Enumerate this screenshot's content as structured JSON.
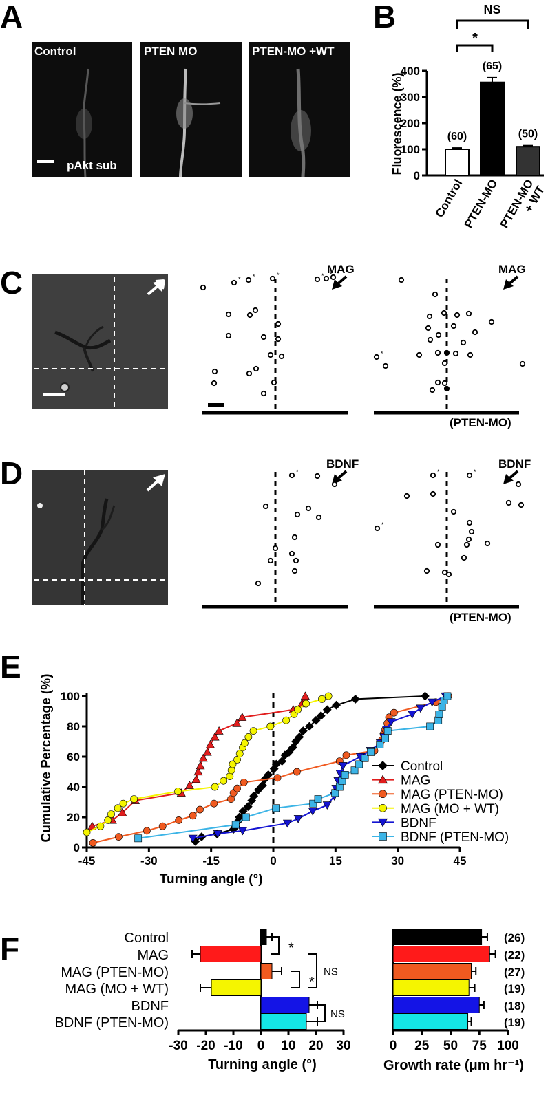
{
  "panels": {
    "A": {
      "letter": "A",
      "images": [
        {
          "label": "Control",
          "caption": "pAkt sub"
        },
        {
          "label": "PTEN MO"
        },
        {
          "label": "PTEN-MO +WT"
        }
      ]
    },
    "B": {
      "letter": "B",
      "sig_outer": "NS",
      "sig_inner": "*"
    },
    "C": {
      "letter": "C",
      "arrow_label_left": "MAG",
      "arrow_label_right": "MAG",
      "sublabel": "(PTEN-MO)",
      "dots_left": [
        [
          295,
          418
        ],
        [
          340,
          411
        ],
        [
          361,
          407
        ],
        [
          396,
          405
        ],
        [
          461,
          406
        ],
        [
          474,
          405
        ],
        [
          484,
          403
        ],
        [
          332,
          457
        ],
        [
          363,
          458
        ],
        [
          371,
          451
        ],
        [
          404,
          471
        ],
        [
          404,
          493
        ],
        [
          383,
          490
        ],
        [
          332,
          488
        ],
        [
          393,
          516
        ],
        [
          409,
          518
        ],
        [
          362,
          543
        ],
        [
          372,
          536
        ],
        [
          312,
          540
        ],
        [
          311,
          557
        ],
        [
          398,
          556
        ],
        [
          383,
          572
        ]
      ],
      "stars_left": [
        [
          343,
          409
        ],
        [
          364,
          405
        ],
        [
          399,
          403
        ],
        [
          464,
          404
        ],
        [
          476,
          402
        ],
        [
          487,
          401
        ]
      ],
      "dots_right": [
        [
          583,
          407
        ],
        [
          632,
          428
        ],
        [
          624,
          460
        ],
        [
          645,
          455
        ],
        [
          664,
          458
        ],
        [
          681,
          456
        ],
        [
          714,
          468
        ],
        [
          622,
          477
        ],
        [
          637,
          487
        ],
        [
          659,
          474
        ],
        [
          690,
          483
        ],
        [
          625,
          494
        ],
        [
          673,
          498
        ],
        [
          609,
          516
        ],
        [
          636,
          513
        ],
        [
          662,
          514
        ],
        [
          683,
          516
        ],
        [
          646,
          528
        ],
        [
          547,
          519
        ],
        [
          560,
          532
        ],
        [
          759,
          529
        ],
        [
          636,
          556
        ],
        [
          646,
          557
        ],
        [
          628,
          567
        ]
      ],
      "filled_right": [
        [
          649,
          513
        ],
        [
          649,
          565
        ]
      ],
      "stars_right": [
        [
          550,
          517
        ]
      ]
    },
    "D": {
      "letter": "D",
      "arrow_label_left": "BDNF",
      "arrow_label_right": "BDNF",
      "sublabel": "(PTEN-MO)",
      "dots_left": [
        [
          424,
          691
        ],
        [
          461,
          692
        ],
        [
          486,
          704
        ],
        [
          386,
          736
        ],
        [
          432,
          748
        ],
        [
          448,
          739
        ],
        [
          463,
          752
        ],
        [
          428,
          781
        ],
        [
          400,
          797
        ],
        [
          393,
          815
        ],
        [
          424,
          805
        ],
        [
          430,
          815
        ],
        [
          428,
          830
        ],
        [
          375,
          848
        ]
      ],
      "stars_left": [
        [
          427,
          689
        ]
      ],
      "dots_right": [
        [
          629,
          691
        ],
        [
          682,
          691
        ],
        [
          591,
          721
        ],
        [
          629,
          718
        ],
        [
          753,
          704
        ],
        [
          739,
          731
        ],
        [
          757,
          734
        ],
        [
          659,
          744
        ],
        [
          682,
          760
        ],
        [
          685,
          773
        ],
        [
          681,
          784
        ],
        [
          678,
          792
        ],
        [
          708,
          790
        ],
        [
          636,
          792
        ],
        [
          674,
          811
        ],
        [
          620,
          830
        ],
        [
          646,
          832
        ],
        [
          652,
          835
        ],
        [
          548,
          768
        ]
      ],
      "stars_right": [
        [
          632,
          689
        ],
        [
          685,
          689
        ],
        [
          551,
          766
        ]
      ]
    },
    "E": {
      "letter": "E"
    },
    "F": {
      "letter": "F"
    }
  },
  "chart_data": [
    {
      "type": "bar",
      "panel": "B",
      "categories": [
        "Control",
        "PTEN-MO",
        "PTEN-MO\n+ WT"
      ],
      "values": [
        100,
        356,
        110
      ],
      "errors": [
        5,
        18,
        4
      ],
      "n_labels": [
        "(60)",
        "(65)",
        "(50)"
      ],
      "colors": [
        "#ffffff",
        "#000000",
        "#333333"
      ],
      "ylabel": "Fluorescence (%)",
      "ylim": [
        0,
        400
      ],
      "yticks": [
        0,
        100,
        200,
        300,
        400
      ]
    },
    {
      "type": "line",
      "panel": "E",
      "xlabel": "Turning angle (°)",
      "ylabel": "Cumulative Percentage (%)",
      "xlim": [
        -45,
        45
      ],
      "ylim": [
        0,
        100
      ],
      "xticks": [
        -45,
        -30,
        -15,
        0,
        15,
        30,
        45
      ],
      "yticks": [
        0,
        20,
        40,
        60,
        80,
        100
      ],
      "legend_position": "bottom-right",
      "series": [
        {
          "name": "Control",
          "color": "#000000",
          "marker": "diamond",
          "points": [
            [
              -18.8,
              4
            ],
            [
              -17.3,
              7
            ],
            [
              -13.6,
              9
            ],
            [
              -9.6,
              12
            ],
            [
              -9.1,
              14
            ],
            [
              -8.6,
              17
            ],
            [
              -8.2,
              20
            ],
            [
              -7.3,
              24
            ],
            [
              -6.1,
              27
            ],
            [
              -5.2,
              31
            ],
            [
              -4.7,
              34
            ],
            [
              -3.6,
              38
            ],
            [
              -2.6,
              41
            ],
            [
              -2.1,
              45
            ],
            [
              -1.2,
              48
            ],
            [
              0.2,
              52
            ],
            [
              0.7,
              55
            ],
            [
              2.1,
              57
            ],
            [
              2.8,
              61
            ],
            [
              3.8,
              63
            ],
            [
              4.7,
              66
            ],
            [
              5.4,
              70
            ],
            [
              6.3,
              73
            ],
            [
              7.2,
              77
            ],
            [
              8.7,
              80
            ],
            [
              10.3,
              84
            ],
            [
              11.5,
              87
            ],
            [
              13.0,
              91
            ],
            [
              15.2,
              94
            ],
            [
              19.8,
              98
            ],
            [
              36.6,
              100
            ]
          ]
        },
        {
          "name": "MAG",
          "color": "#e11d1d",
          "marker": "triangle",
          "points": [
            [
              -43.7,
              14
            ],
            [
              -38.8,
              18
            ],
            [
              -36.4,
              23
            ],
            [
              -33.3,
              31
            ],
            [
              -22.2,
              36
            ],
            [
              -20.2,
              41
            ],
            [
              -18.6,
              45
            ],
            [
              -18.1,
              50
            ],
            [
              -17.6,
              54
            ],
            [
              -16.9,
              59
            ],
            [
              -15.9,
              63
            ],
            [
              -15.2,
              68
            ],
            [
              -14.1,
              73
            ],
            [
              -13.1,
              77
            ],
            [
              -8.8,
              82
            ],
            [
              -7.5,
              86
            ],
            [
              4.8,
              91
            ],
            [
              6.9,
              95
            ],
            [
              7.7,
              100
            ]
          ]
        },
        {
          "name": "MAG (PTEN-MO)",
          "color": "#f05a20",
          "marker": "circle",
          "points": [
            [
              -43.5,
              3
            ],
            [
              -37.3,
              7
            ],
            [
              -30.5,
              11
            ],
            [
              -26.7,
              14
            ],
            [
              -22.8,
              18
            ],
            [
              -19.4,
              21
            ],
            [
              -17.7,
              25
            ],
            [
              -14.3,
              29
            ],
            [
              -10.2,
              32
            ],
            [
              -9.6,
              36
            ],
            [
              -8.7,
              39
            ],
            [
              -7.1,
              43
            ],
            [
              1.0,
              46
            ],
            [
              5.7,
              50
            ],
            [
              16.0,
              57
            ],
            [
              17.6,
              61
            ],
            [
              24.4,
              64
            ],
            [
              25.7,
              68
            ],
            [
              26.2,
              71
            ],
            [
              26.6,
              75
            ],
            [
              27.0,
              78
            ],
            [
              27.5,
              82
            ],
            [
              27.9,
              86
            ],
            [
              29.1,
              89
            ],
            [
              39.2,
              96
            ],
            [
              42.2,
              100
            ]
          ]
        },
        {
          "name": "MAG (MO + WT)",
          "color": "#f5f500",
          "marker": "circle",
          "points": [
            [
              -45.0,
              10
            ],
            [
              -41.7,
              14
            ],
            [
              -39.9,
              18
            ],
            [
              -39.1,
              22
            ],
            [
              -37.5,
              26
            ],
            [
              -36.2,
              29
            ],
            [
              -33.6,
              32
            ],
            [
              -23.0,
              37
            ],
            [
              -14.1,
              40
            ],
            [
              -12.0,
              44
            ],
            [
              -10.5,
              47
            ],
            [
              -10.1,
              51
            ],
            [
              -9.8,
              55
            ],
            [
              -8.7,
              58
            ],
            [
              -8.1,
              62
            ],
            [
              -7.4,
              66
            ],
            [
              -6.9,
              69
            ],
            [
              -6.0,
              73
            ],
            [
              -4.8,
              77
            ],
            [
              -0.7,
              80
            ],
            [
              3.1,
              84
            ],
            [
              5.0,
              88
            ],
            [
              5.9,
              91
            ],
            [
              7.9,
              95
            ],
            [
              11.7,
              98
            ],
            [
              13.3,
              100
            ]
          ]
        },
        {
          "name": "BDNF",
          "color": "#1414d2",
          "marker": "triangle-down",
          "points": [
            [
              -19.4,
              6
            ],
            [
              -13.4,
              9
            ],
            [
              -7.4,
              11
            ],
            [
              3.4,
              16
            ],
            [
              6.0,
              19
            ],
            [
              9.5,
              24
            ],
            [
              13.0,
              28
            ],
            [
              14.7,
              34
            ],
            [
              15.1,
              39
            ],
            [
              15.6,
              44
            ],
            [
              16.1,
              49
            ],
            [
              16.8,
              54
            ],
            [
              21.0,
              60
            ],
            [
              23.4,
              64
            ],
            [
              25.8,
              69
            ],
            [
              26.7,
              73
            ],
            [
              27.3,
              78
            ],
            [
              28.4,
              83
            ],
            [
              33.5,
              88
            ],
            [
              35.5,
              92
            ],
            [
              38.3,
              96
            ],
            [
              41.5,
              100
            ]
          ]
        },
        {
          "name": "BDNF (PTEN-MO)",
          "color": "#3cb4e6",
          "marker": "square",
          "points": [
            [
              -32.6,
              6
            ],
            [
              -9.1,
              15
            ],
            [
              -6.6,
              20
            ],
            [
              0.6,
              26
            ],
            [
              9.6,
              29
            ],
            [
              10.8,
              32
            ],
            [
              14.9,
              36
            ],
            [
              16.0,
              40
            ],
            [
              16.6,
              44
            ],
            [
              17.3,
              48
            ],
            [
              19.6,
              51
            ],
            [
              20.7,
              55
            ],
            [
              22.1,
              59
            ],
            [
              23.5,
              63
            ],
            [
              25.7,
              68
            ],
            [
              27.0,
              72
            ],
            [
              27.6,
              77
            ],
            [
              37.8,
              80
            ],
            [
              39.8,
              84
            ],
            [
              40.0,
              88
            ],
            [
              40.7,
              93
            ],
            [
              41.2,
              97
            ],
            [
              42.0,
              100
            ]
          ]
        }
      ]
    },
    {
      "type": "bar",
      "panel": "F-left",
      "orientation": "horizontal",
      "categories": [
        "Control",
        "MAG",
        "MAG (PTEN-MO)",
        "MAG (MO + WT)",
        "BDNF",
        "BDNF (PTEN-MO)"
      ],
      "values": [
        2,
        -22,
        4,
        -18,
        17.5,
        16.5
      ],
      "errors": [
        2,
        3,
        3.5,
        4,
        3,
        4
      ],
      "colors": [
        "#000000",
        "#ff1a1a",
        "#f05a20",
        "#f5f500",
        "#1414e6",
        "#14e6e6"
      ],
      "xlabel": "Turning angle (°)",
      "xlim": [
        -30,
        30
      ],
      "xticks": [
        -30,
        -20,
        -10,
        0,
        10,
        20,
        30
      ],
      "significance": [
        {
          "rows": [
            0,
            1
          ],
          "label": "*"
        },
        {
          "rows": [
            1,
            3
          ],
          "label": "NS"
        },
        {
          "rows": [
            2,
            3
          ],
          "label": "*"
        },
        {
          "rows": [
            4,
            5
          ],
          "label": "NS"
        }
      ]
    },
    {
      "type": "bar",
      "panel": "F-right",
      "orientation": "horizontal",
      "categories": [
        "Control",
        "MAG",
        "MAG (PTEN-MO)",
        "MAG (MO + WT)",
        "BDNF",
        "BDNF (PTEN-MO)"
      ],
      "values": [
        77,
        84,
        68,
        66,
        75,
        65
      ],
      "errors": [
        5,
        5,
        4,
        5,
        4,
        3
      ],
      "n_labels": [
        "(26)",
        "(22)",
        "(27)",
        "(19)",
        "(18)",
        "(19)"
      ],
      "colors": [
        "#000000",
        "#ff1a1a",
        "#f05a20",
        "#f5f500",
        "#1414e6",
        "#14e6e6"
      ],
      "xlabel": "Growth rate (μm hr⁻¹)",
      "xlim": [
        0,
        100
      ],
      "xticks": [
        0,
        25,
        50,
        75,
        100
      ]
    }
  ]
}
